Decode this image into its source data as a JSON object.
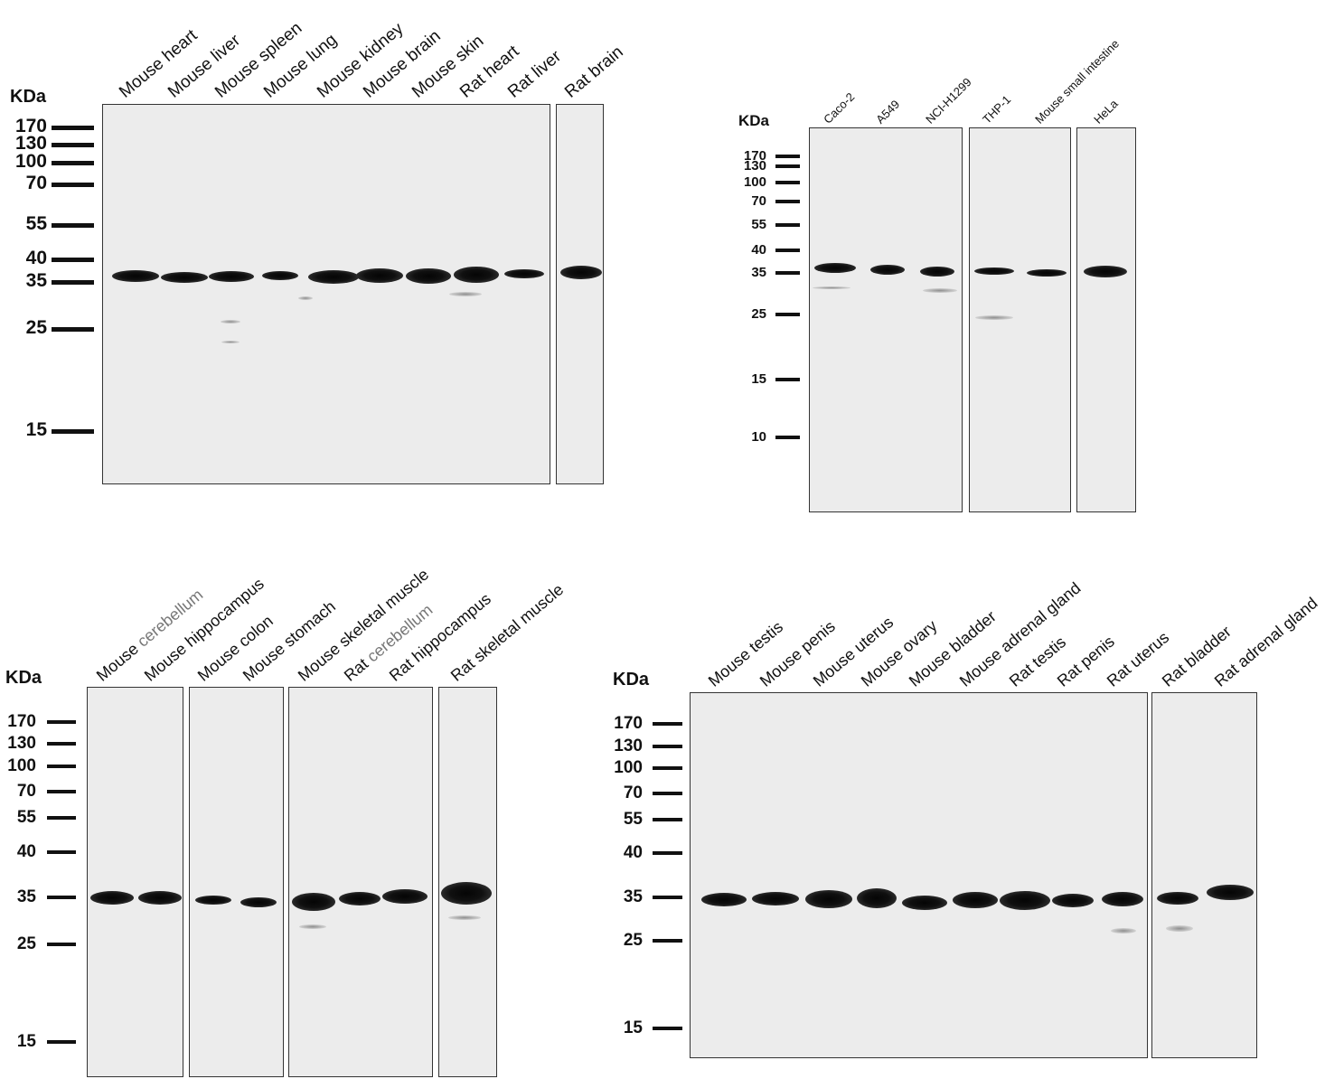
{
  "panels": [
    {
      "id": "top-left",
      "kda": "KDa",
      "markers": [
        "170",
        "130",
        "100",
        "70",
        "55",
        "40",
        "35",
        "25",
        "15"
      ],
      "lanes": [
        {
          "parts": [
            {
              "t": "Mouse heart"
            }
          ]
        },
        {
          "parts": [
            {
              "t": "Mouse liver"
            }
          ]
        },
        {
          "parts": [
            {
              "t": "Mouse spleen"
            }
          ]
        },
        {
          "parts": [
            {
              "t": "Mouse lung"
            }
          ]
        },
        {
          "parts": [
            {
              "t": "Mouse kidney"
            }
          ]
        },
        {
          "parts": [
            {
              "t": "Mouse brain"
            }
          ]
        },
        {
          "parts": [
            {
              "t": "Mouse skin"
            }
          ]
        },
        {
          "parts": [
            {
              "t": "Rat heart"
            }
          ]
        },
        {
          "parts": [
            {
              "t": "Rat liver"
            }
          ]
        },
        {
          "parts": [
            {
              "t": "Rat brain"
            }
          ]
        }
      ]
    },
    {
      "id": "top-right",
      "kda": "KDa",
      "markers": [
        "170",
        "130",
        "100",
        "70",
        "55",
        "40",
        "35",
        "25",
        "15",
        "10"
      ],
      "lanes": [
        {
          "parts": [
            {
              "t": "Caco-2"
            }
          ]
        },
        {
          "parts": [
            {
              "t": "A549"
            }
          ]
        },
        {
          "parts": [
            {
              "t": "NCI-H1299"
            }
          ]
        },
        {
          "parts": [
            {
              "t": "THP-1"
            }
          ]
        },
        {
          "parts": [
            {
              "t": "Mouse small intestine"
            }
          ]
        },
        {
          "parts": [
            {
              "t": "HeLa"
            }
          ]
        }
      ]
    },
    {
      "id": "bottom-left",
      "kda": "KDa",
      "markers": [
        "170",
        "130",
        "100",
        "70",
        "55",
        "40",
        "35",
        "25",
        "15"
      ],
      "lanes": [
        {
          "parts": [
            {
              "t": "Mouse "
            },
            {
              "t": "cerebellum",
              "muted": true
            }
          ]
        },
        {
          "parts": [
            {
              "t": "Mouse hippocampus"
            }
          ]
        },
        {
          "parts": [
            {
              "t": "Mouse colon"
            }
          ]
        },
        {
          "parts": [
            {
              "t": "Mouse stomach"
            }
          ]
        },
        {
          "parts": [
            {
              "t": "Mouse skeletal muscle"
            }
          ]
        },
        {
          "parts": [
            {
              "t": "Rat "
            },
            {
              "t": "cerebellum",
              "muted": true
            }
          ]
        },
        {
          "parts": [
            {
              "t": "Rat hippocampus"
            }
          ]
        },
        {
          "parts": [
            {
              "t": "Rat skeletal muscle"
            }
          ]
        }
      ]
    },
    {
      "id": "bottom-right",
      "kda": "KDa",
      "markers": [
        "170",
        "130",
        "100",
        "70",
        "55",
        "40",
        "35",
        "25",
        "15"
      ],
      "lanes": [
        {
          "parts": [
            {
              "t": "Mouse testis"
            }
          ]
        },
        {
          "parts": [
            {
              "t": "Mouse penis"
            }
          ]
        },
        {
          "parts": [
            {
              "t": "Mouse uterus"
            }
          ]
        },
        {
          "parts": [
            {
              "t": "Mouse ovary"
            }
          ]
        },
        {
          "parts": [
            {
              "t": "Mouse bladder"
            }
          ]
        },
        {
          "parts": [
            {
              "t": "Mouse adrenal gland"
            }
          ]
        },
        {
          "parts": [
            {
              "t": "Rat testis"
            }
          ]
        },
        {
          "parts": [
            {
              "t": "Rat penis"
            }
          ]
        },
        {
          "parts": [
            {
              "t": "Rat uterus"
            }
          ]
        },
        {
          "parts": [
            {
              "t": "Rat bladder"
            }
          ]
        },
        {
          "parts": [
            {
              "t": "Rat adrenal gland"
            }
          ]
        }
      ]
    }
  ]
}
